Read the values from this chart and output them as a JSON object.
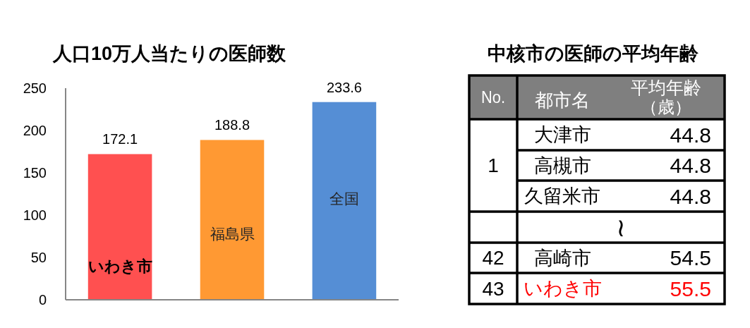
{
  "chart_data": [
    {
      "type": "bar",
      "title": "人口10万人当たりの医師数",
      "categories": [
        "いわき市",
        "福島県",
        "全国"
      ],
      "values": [
        172.1,
        188.8,
        233.6
      ],
      "colors": [
        "#ff5050",
        "#ff9933",
        "#558ed5"
      ],
      "ylim": [
        0,
        250
      ],
      "yticks": [
        0,
        50,
        100,
        150,
        200,
        250
      ],
      "data_labels": true
    },
    {
      "type": "other",
      "title": "中核市の医師の平均年齢",
      "categories": [
        "大津市",
        "高槻市",
        "久留米市",
        null,
        "高崎市",
        "いわき市"
      ],
      "values": [
        44.8,
        44.8,
        44.8,
        null,
        54.5,
        55.5
      ],
      "colors": [
        "#000000",
        "#000000",
        "#000000",
        "#000000",
        "#000000",
        "#ff0000"
      ],
      "data_labels": true,
      "annotations": [
        "No.",
        "都市名",
        "平均年齢",
        "（歳）",
        "1",
        "≀",
        "42",
        "43"
      ]
    }
  ]
}
